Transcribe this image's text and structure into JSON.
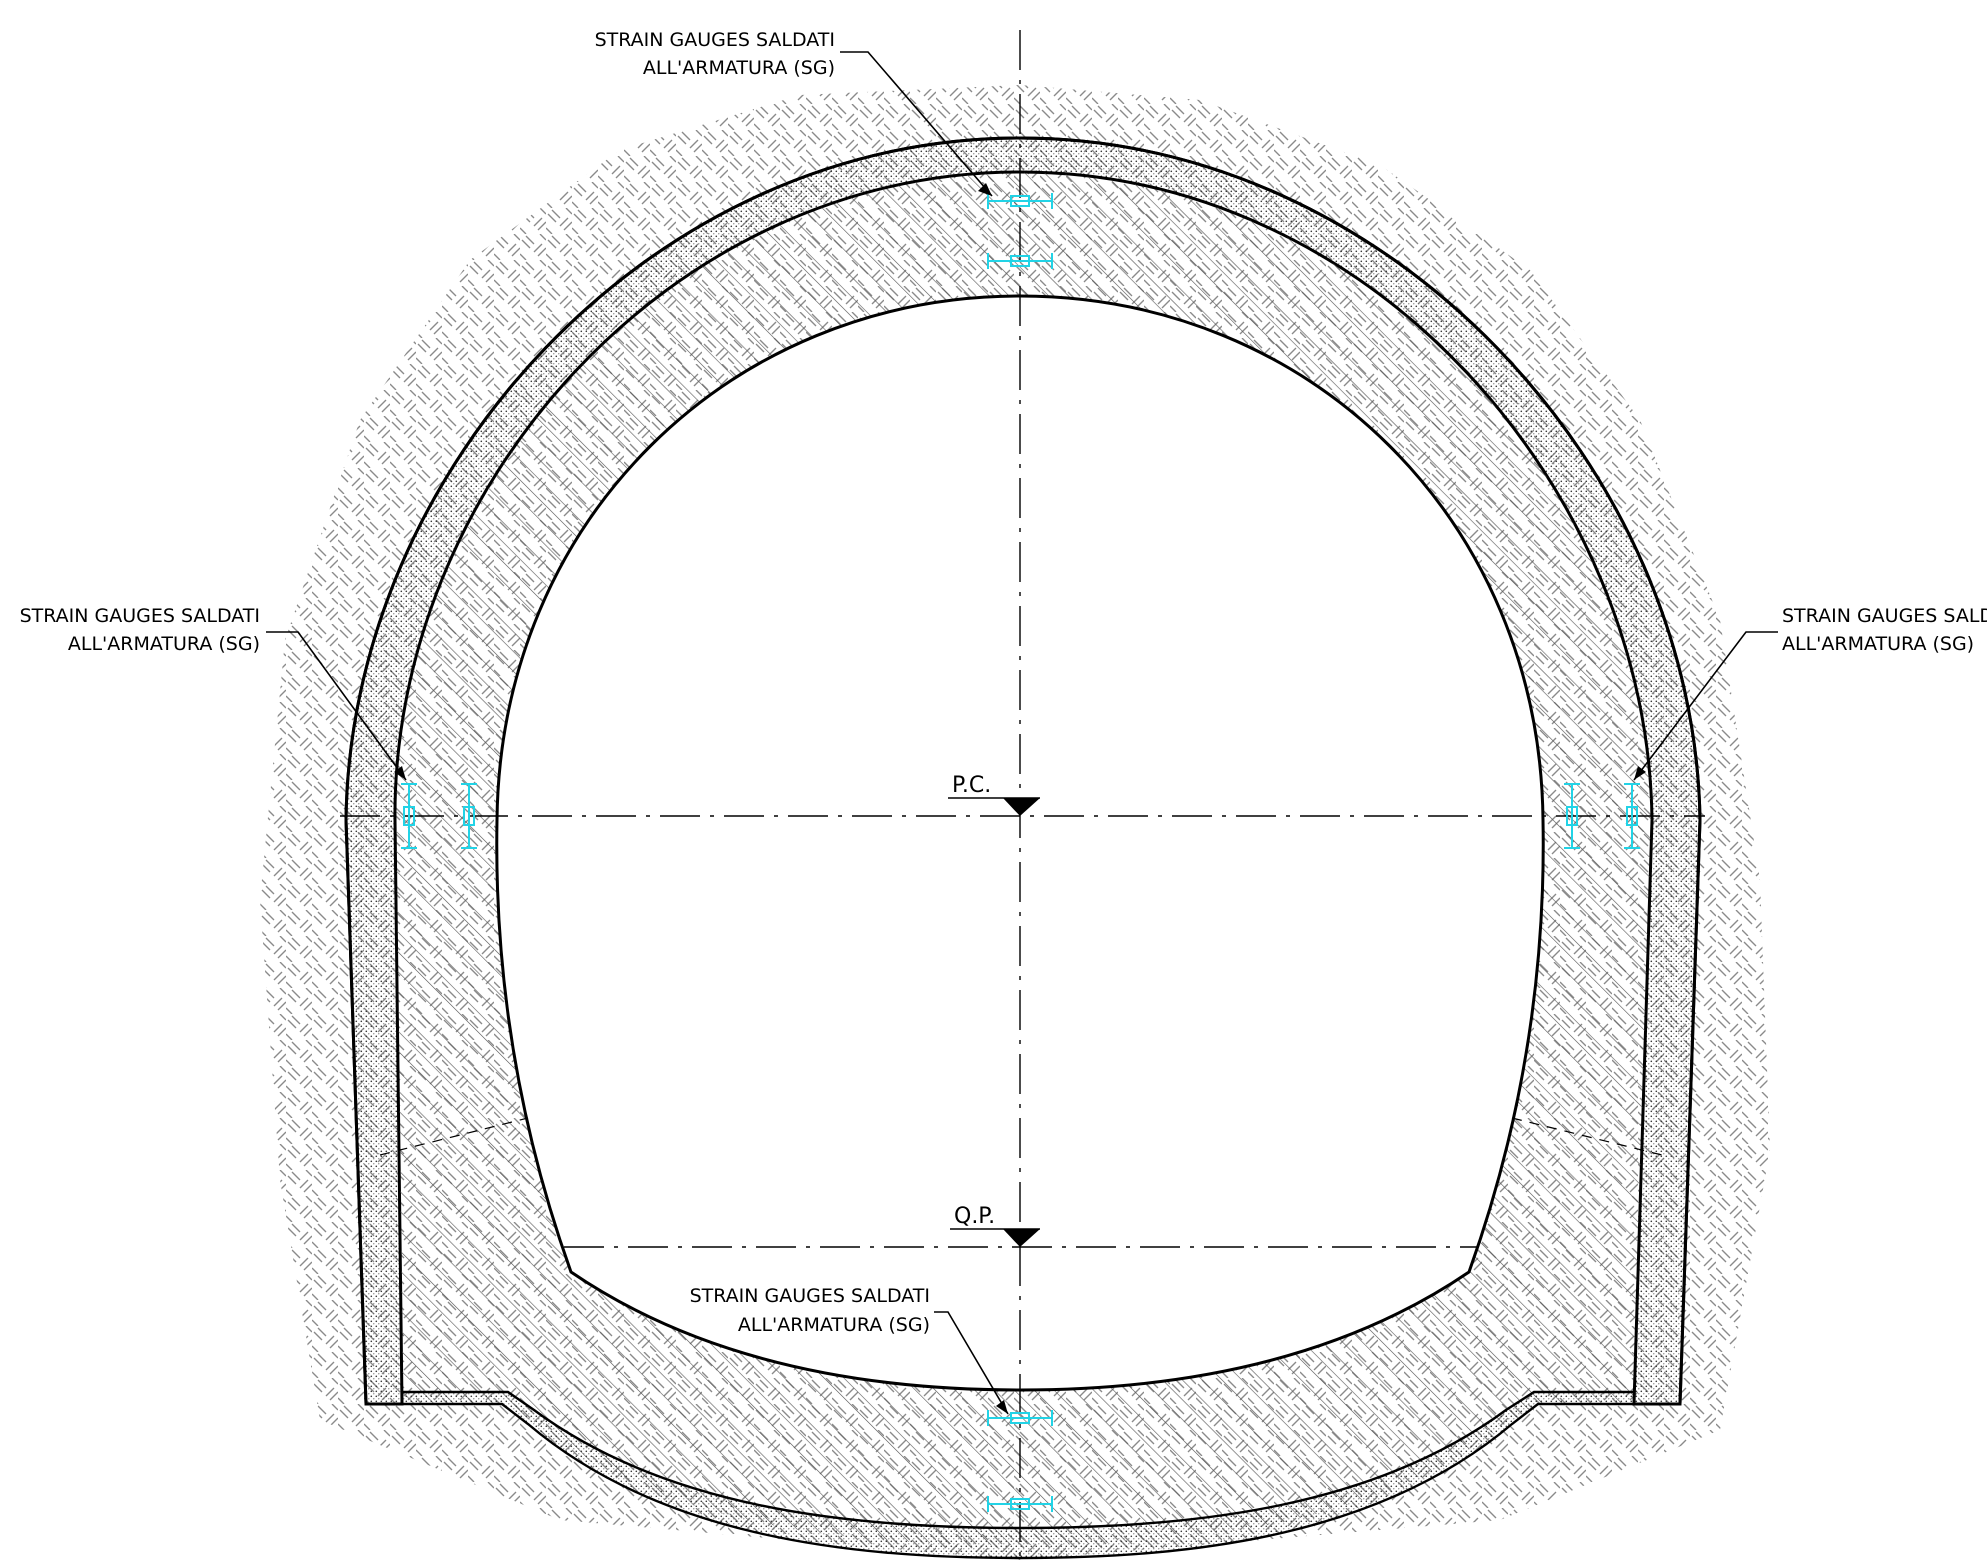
{
  "drawing": {
    "gauge_color": "#22d3e6",
    "line_color": "#000000",
    "annotations": [
      {
        "id": "top",
        "line1": "STRAIN GAUGES SALDATI",
        "line2": "ALL'ARMATURA (SG)"
      },
      {
        "id": "left",
        "line1": "STRAIN GAUGES SALDATI",
        "line2": "ALL'ARMATURA (SG)"
      },
      {
        "id": "right",
        "line1": "STRAIN GAUGES SALDATI",
        "line2": "ALL'ARMATURA (SG)"
      },
      {
        "id": "bottom",
        "line1": "STRAIN GAUGES SALDATI",
        "line2": "ALL'ARMATURA (SG)"
      }
    ],
    "levels": {
      "pc": "P.C.",
      "qp": "Q.P."
    }
  }
}
